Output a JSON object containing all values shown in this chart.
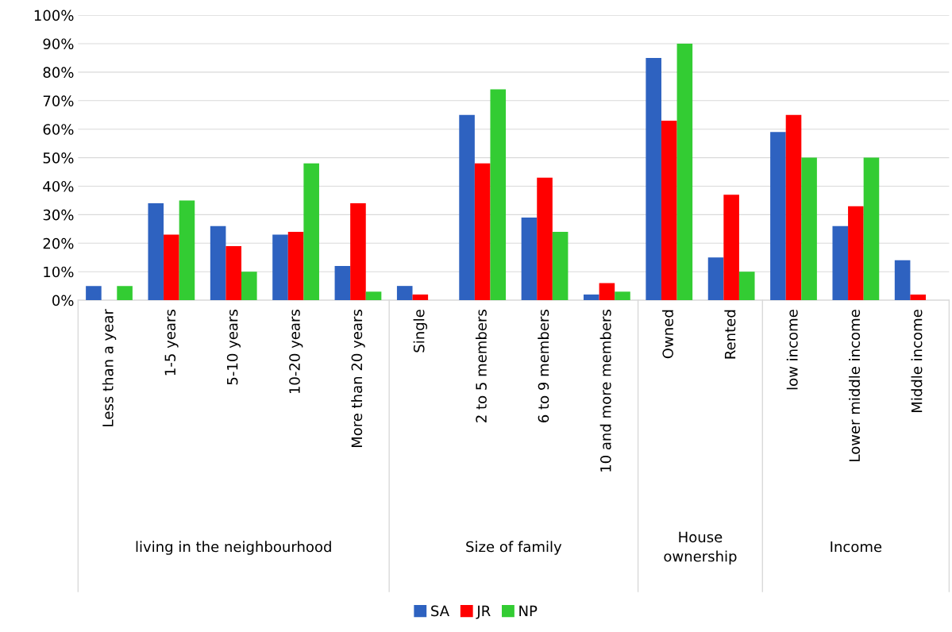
{
  "chart_data": {
    "type": "bar",
    "categories": [
      "Less than a year",
      "1-5 years",
      "5-10 years",
      "10-20 years",
      "More than 20 years",
      "Single",
      "2 to 5 members",
      "6 to 9 members",
      "10 and more members",
      "Owned",
      "Rented",
      "low income",
      "Lower middle income",
      "Middle income"
    ],
    "series": [
      {
        "name": "SA",
        "color": "#2e62c0",
        "values": [
          5,
          34,
          26,
          23,
          12,
          5,
          65,
          29,
          2,
          85,
          15,
          59,
          26,
          14
        ]
      },
      {
        "name": "JR",
        "color": "#ff0000",
        "values": [
          0,
          23,
          19,
          24,
          34,
          2,
          48,
          43,
          6,
          63,
          37,
          65,
          33,
          2
        ]
      },
      {
        "name": "NP",
        "color": "#33cc33",
        "values": [
          5,
          35,
          10,
          48,
          3,
          0,
          74,
          24,
          3,
          90,
          10,
          50,
          50,
          0
        ]
      }
    ],
    "annotations": [
      "living in the neighbourhood",
      "Size of family",
      "House\nownership",
      "Income"
    ],
    "ylim": [
      0,
      100
    ],
    "yticks": [
      {
        "value": 0,
        "label": "0%"
      },
      {
        "value": 10,
        "label": "10%"
      },
      {
        "value": 20,
        "label": "20%"
      },
      {
        "value": 30,
        "label": "30%"
      },
      {
        "value": 40,
        "label": "40%"
      },
      {
        "value": 50,
        "label": "50%"
      },
      {
        "value": 60,
        "label": "60%"
      },
      {
        "value": 70,
        "label": "70%"
      },
      {
        "value": 80,
        "label": "80%"
      },
      {
        "value": 90,
        "label": "90%"
      },
      {
        "value": 100,
        "label": "100%"
      }
    ],
    "grid": "y",
    "legend": "bottom"
  }
}
